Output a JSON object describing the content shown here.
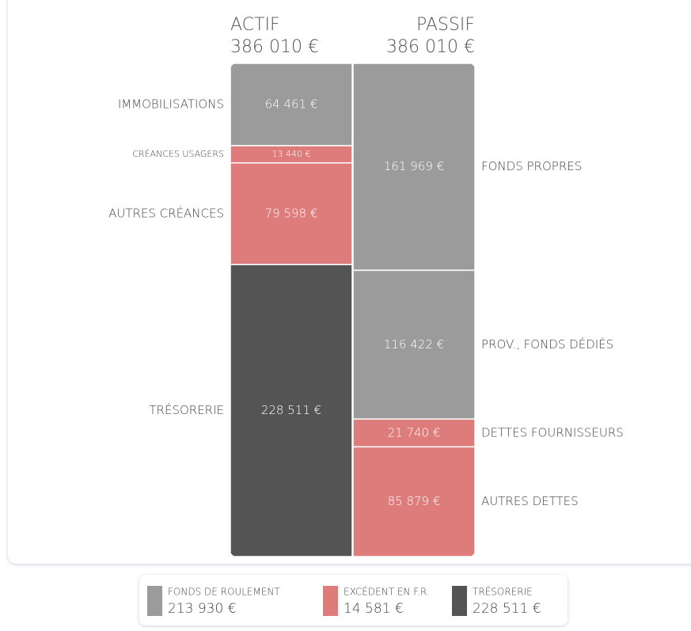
{
  "chart_data": {
    "type": "balance",
    "columns": [
      {
        "name": "ACTIF",
        "total": 386010,
        "total_label": "386 010 €",
        "segments": [
          {
            "name": "IMMOBILISATIONS",
            "value": 64461,
            "value_label": "64 461 €",
            "color": "#9b9b9b"
          },
          {
            "name": "CRÉANCES USAGERS",
            "value": 13440,
            "value_label": "13 440 €",
            "color": "#de7c7c"
          },
          {
            "name": "AUTRES CRÉANCES",
            "value": 79598,
            "value_label": "79 598 €",
            "color": "#de7c7c"
          },
          {
            "name": "TRÉSORERIE",
            "value": 228511,
            "value_label": "228 511 €",
            "color": "#545454"
          }
        ]
      },
      {
        "name": "PASSIF",
        "total": 386010,
        "total_label": "386 010 €",
        "segments": [
          {
            "name": "FONDS PROPRES",
            "value": 161969,
            "value_label": "161 969 €",
            "color": "#9b9b9b"
          },
          {
            "name": "PROV., FONDS DÉDIÉS",
            "value": 116422,
            "value_label": "116 422 €",
            "color": "#9b9b9b"
          },
          {
            "name": "DETTES FOURNISSEURS",
            "value": 21740,
            "value_label": "21 740 €",
            "color": "#de7c7c"
          },
          {
            "name": "AUTRES DETTES",
            "value": 85879,
            "value_label": "85 879 €",
            "color": "#de7c7c"
          }
        ]
      }
    ],
    "legend": [
      {
        "name": "FONDS DE ROULEMENT",
        "value": 213930,
        "value_label": "213 930 €",
        "color": "#9b9b9b"
      },
      {
        "name": "EXCÉDENT EN F.R.",
        "value": 14581,
        "value_label": "14 581 €",
        "color": "#de7c7c"
      },
      {
        "name": "TRÉSORERIE",
        "value": 228511,
        "value_label": "228 511 €",
        "color": "#545454"
      }
    ]
  }
}
